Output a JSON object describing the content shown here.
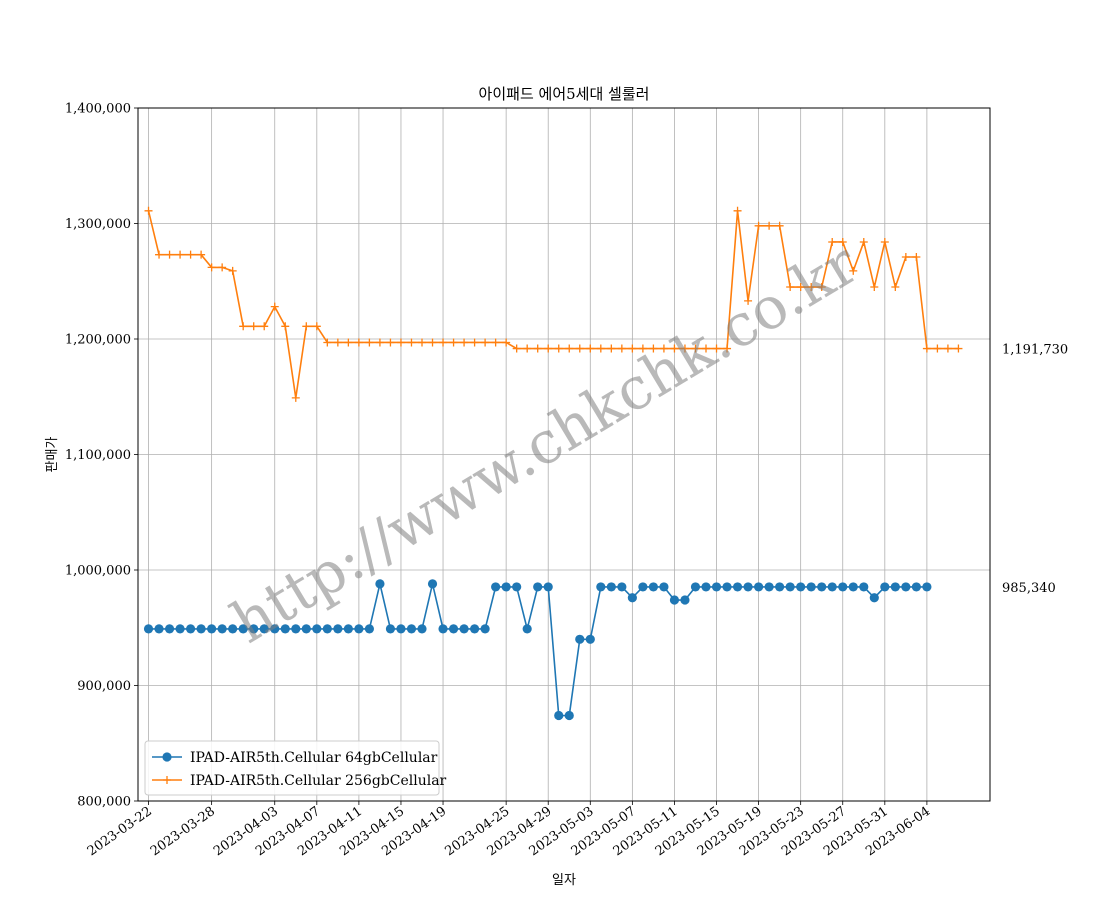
{
  "chart_data": {
    "type": "line",
    "title": "아이패드 에어5세대  셀룰러",
    "xlabel": "일자",
    "ylabel": "판매가",
    "ylim": [
      800000,
      1400000
    ],
    "yticks": [
      800000,
      900000,
      1000000,
      1100000,
      1200000,
      1300000,
      1400000
    ],
    "ytick_labels": [
      "800,000",
      "900,000",
      "1,000,000",
      "1,100,000",
      "1,200,000",
      "1,300,000",
      "1,400,000"
    ],
    "xlim": [
      "2023-03-21",
      "2023-06-10"
    ],
    "xticks": [
      "2023-03-22",
      "2023-03-28",
      "2023-04-03",
      "2023-04-07",
      "2023-04-11",
      "2023-04-15",
      "2023-04-19",
      "2023-04-25",
      "2023-04-29",
      "2023-05-03",
      "2023-05-07",
      "2023-05-11",
      "2023-05-15",
      "2023-05-19",
      "2023-05-23",
      "2023-05-27",
      "2023-05-31",
      "2023-06-04"
    ],
    "grid": true,
    "legend_position": "lower-left",
    "watermark": "http://www.chkchk.co.kr",
    "x": [
      "2023-03-22",
      "2023-03-23",
      "2023-03-24",
      "2023-03-25",
      "2023-03-26",
      "2023-03-27",
      "2023-03-28",
      "2023-03-29",
      "2023-03-30",
      "2023-03-31",
      "2023-04-01",
      "2023-04-02",
      "2023-04-03",
      "2023-04-04",
      "2023-04-05",
      "2023-04-06",
      "2023-04-07",
      "2023-04-08",
      "2023-04-09",
      "2023-04-10",
      "2023-04-11",
      "2023-04-12",
      "2023-04-13",
      "2023-04-14",
      "2023-04-15",
      "2023-04-16",
      "2023-04-17",
      "2023-04-18",
      "2023-04-19",
      "2023-04-20",
      "2023-04-21",
      "2023-04-22",
      "2023-04-23",
      "2023-04-24",
      "2023-04-25",
      "2023-04-26",
      "2023-04-27",
      "2023-04-28",
      "2023-04-29",
      "2023-04-30",
      "2023-05-01",
      "2023-05-02",
      "2023-05-03",
      "2023-05-04",
      "2023-05-05",
      "2023-05-06",
      "2023-05-07",
      "2023-05-08",
      "2023-05-09",
      "2023-05-10",
      "2023-05-11",
      "2023-05-12",
      "2023-05-13",
      "2023-05-14",
      "2023-05-15",
      "2023-05-16",
      "2023-05-17",
      "2023-05-18",
      "2023-05-19",
      "2023-05-20",
      "2023-05-21",
      "2023-05-22",
      "2023-05-23",
      "2023-05-24",
      "2023-05-25",
      "2023-05-26",
      "2023-05-27",
      "2023-05-28",
      "2023-05-29",
      "2023-05-30",
      "2023-05-31",
      "2023-06-01",
      "2023-06-02",
      "2023-06-03",
      "2023-06-04",
      "2023-06-05",
      "2023-06-06",
      "2023-06-07"
    ],
    "series": [
      {
        "name": "IPAD-AIR5th.Cellular 64gbCellular",
        "color": "#1f77b4",
        "marker": "circle",
        "end_label": "985,340",
        "values": [
          949000,
          949000,
          949000,
          949000,
          949000,
          949000,
          949000,
          949000,
          949000,
          949000,
          949000,
          949000,
          949000,
          949000,
          949000,
          949000,
          949000,
          949000,
          949000,
          949000,
          949000,
          949000,
          988000,
          949000,
          949000,
          949000,
          949000,
          988000,
          949000,
          949000,
          949000,
          949000,
          949000,
          985340,
          985340,
          985340,
          949000,
          985340,
          985340,
          874000,
          874000,
          940000,
          940000,
          985340,
          985340,
          985340,
          976000,
          985340,
          985340,
          985340,
          974000,
          974000,
          985340,
          985340,
          985340,
          985340,
          985340,
          985340,
          985340,
          985340,
          985340,
          985340,
          985340,
          985340,
          985340,
          985340,
          985340,
          985340,
          985340,
          976000,
          985340,
          985340,
          985340,
          985340,
          985340,
          null,
          null,
          null
        ]
      },
      {
        "name": "IPAD-AIR5th.Cellular 256gbCellular",
        "color": "#ff7f0e",
        "marker": "plus",
        "end_label": "1,191,730",
        "values": [
          1311000,
          1273000,
          1273000,
          1273000,
          1273000,
          1273000,
          1262000,
          1262000,
          1259000,
          1211000,
          1211000,
          1211000,
          1228000,
          1211000,
          1149000,
          1211000,
          1211000,
          1197000,
          1197000,
          1197000,
          1197000,
          1197000,
          1197000,
          1197000,
          1197000,
          1197000,
          1197000,
          1197000,
          1197000,
          1197000,
          1197000,
          1197000,
          1197000,
          1197000,
          1197000,
          1191730,
          1191730,
          1191730,
          1191730,
          1191730,
          1191730,
          1191730,
          1191730,
          1191730,
          1191730,
          1191730,
          1191730,
          1191730,
          1191730,
          1191730,
          1191730,
          1191730,
          1191730,
          1191730,
          1191730,
          1191730,
          1311000,
          1233000,
          1298000,
          1298000,
          1298000,
          1245000,
          1245000,
          1245000,
          1245000,
          1284000,
          1284000,
          1259000,
          1284000,
          1245000,
          1284000,
          1245000,
          1271000,
          1271000,
          1191730,
          1191730,
          1191730,
          1191730
        ]
      }
    ]
  }
}
